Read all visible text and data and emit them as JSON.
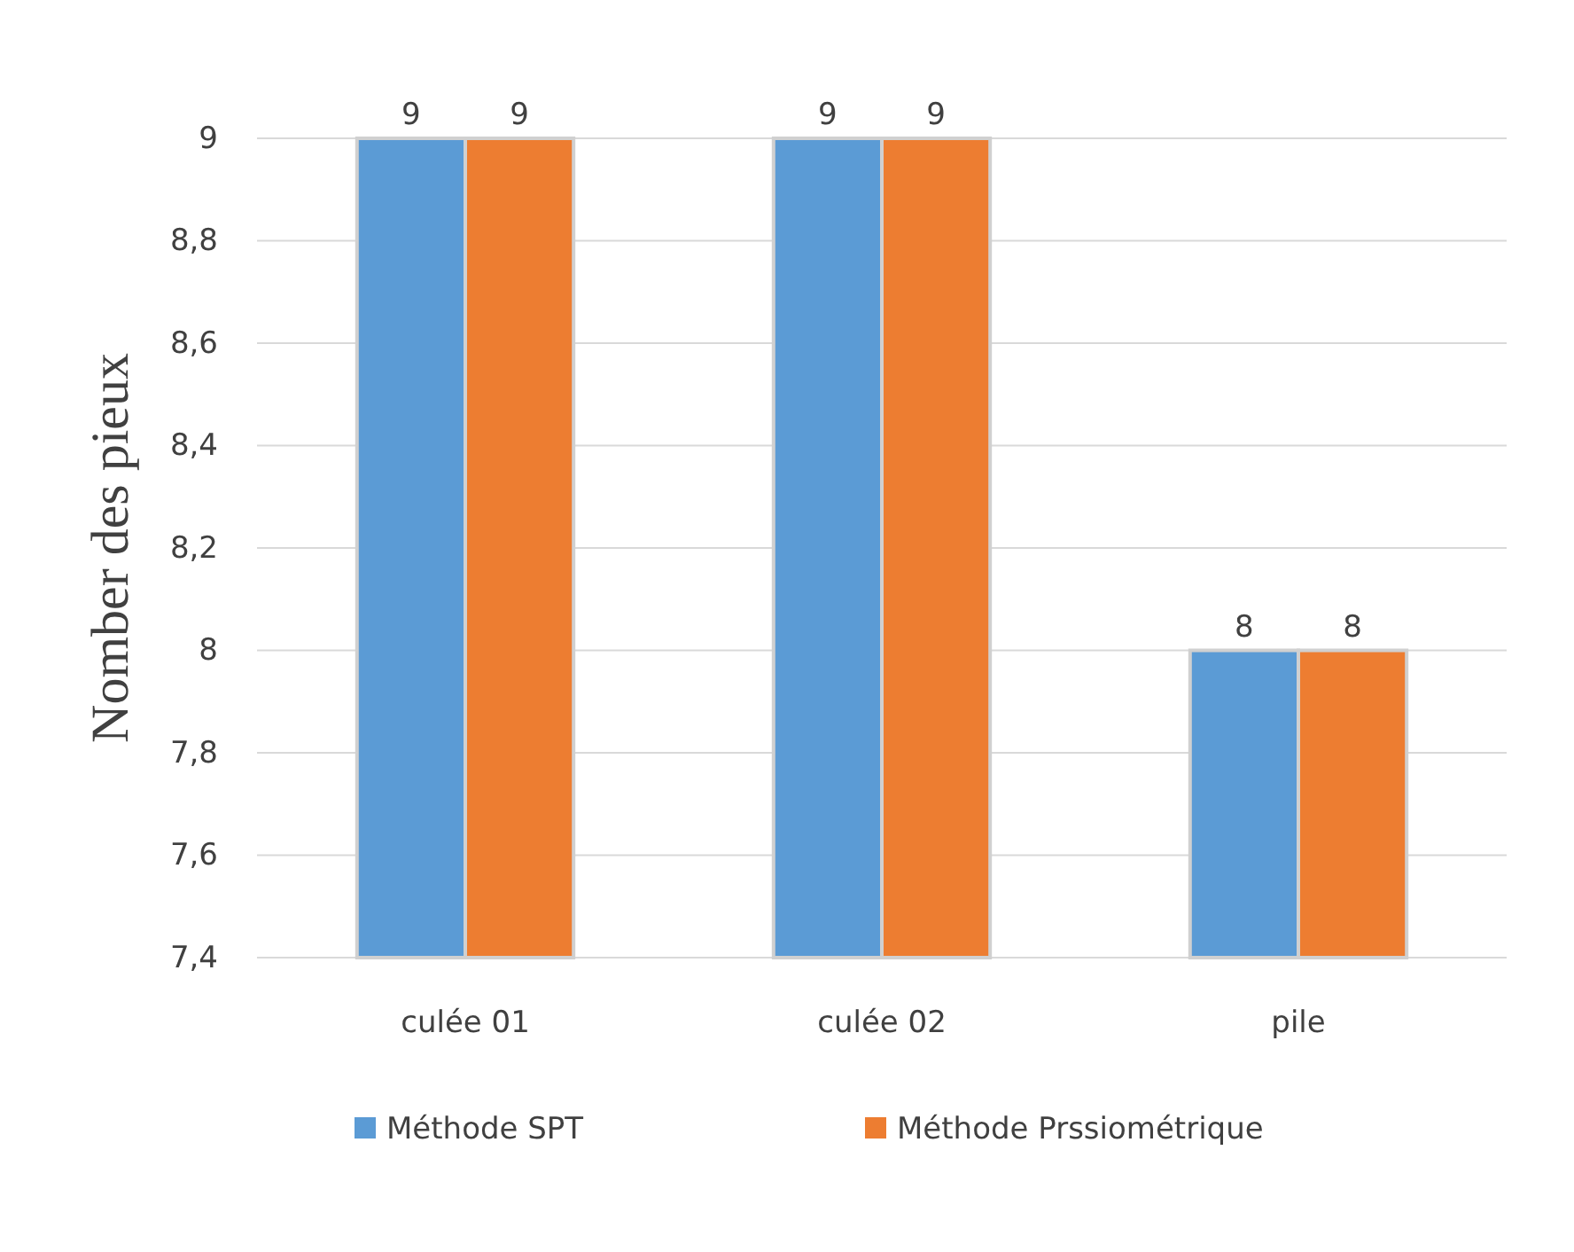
{
  "chart_data": {
    "type": "bar",
    "ylabel": "Nomber des pieux",
    "categories": [
      "culée 01",
      "culée 02",
      "pile"
    ],
    "series": [
      {
        "name": "Méthode  SPT",
        "color": "#5b9bd5",
        "values": [
          9,
          9,
          8
        ]
      },
      {
        "name": "Méthode Prssiométrique",
        "color": "#ed7d31",
        "values": [
          9,
          9,
          8
        ]
      }
    ],
    "ylim": [
      7.4,
      9
    ],
    "yticks": [
      {
        "value": 7.4,
        "label": "7,4"
      },
      {
        "value": 7.6,
        "label": "7,6"
      },
      {
        "value": 7.8,
        "label": "7,8"
      },
      {
        "value": 8,
        "label": "8"
      },
      {
        "value": 8.2,
        "label": "8,2"
      },
      {
        "value": 8.4,
        "label": "8,4"
      },
      {
        "value": 8.6,
        "label": "8,6"
      },
      {
        "value": 8.8,
        "label": "8,8"
      },
      {
        "value": 9,
        "label": "9"
      }
    ],
    "grid": "y",
    "legend": "bottom",
    "data_labels": true
  }
}
